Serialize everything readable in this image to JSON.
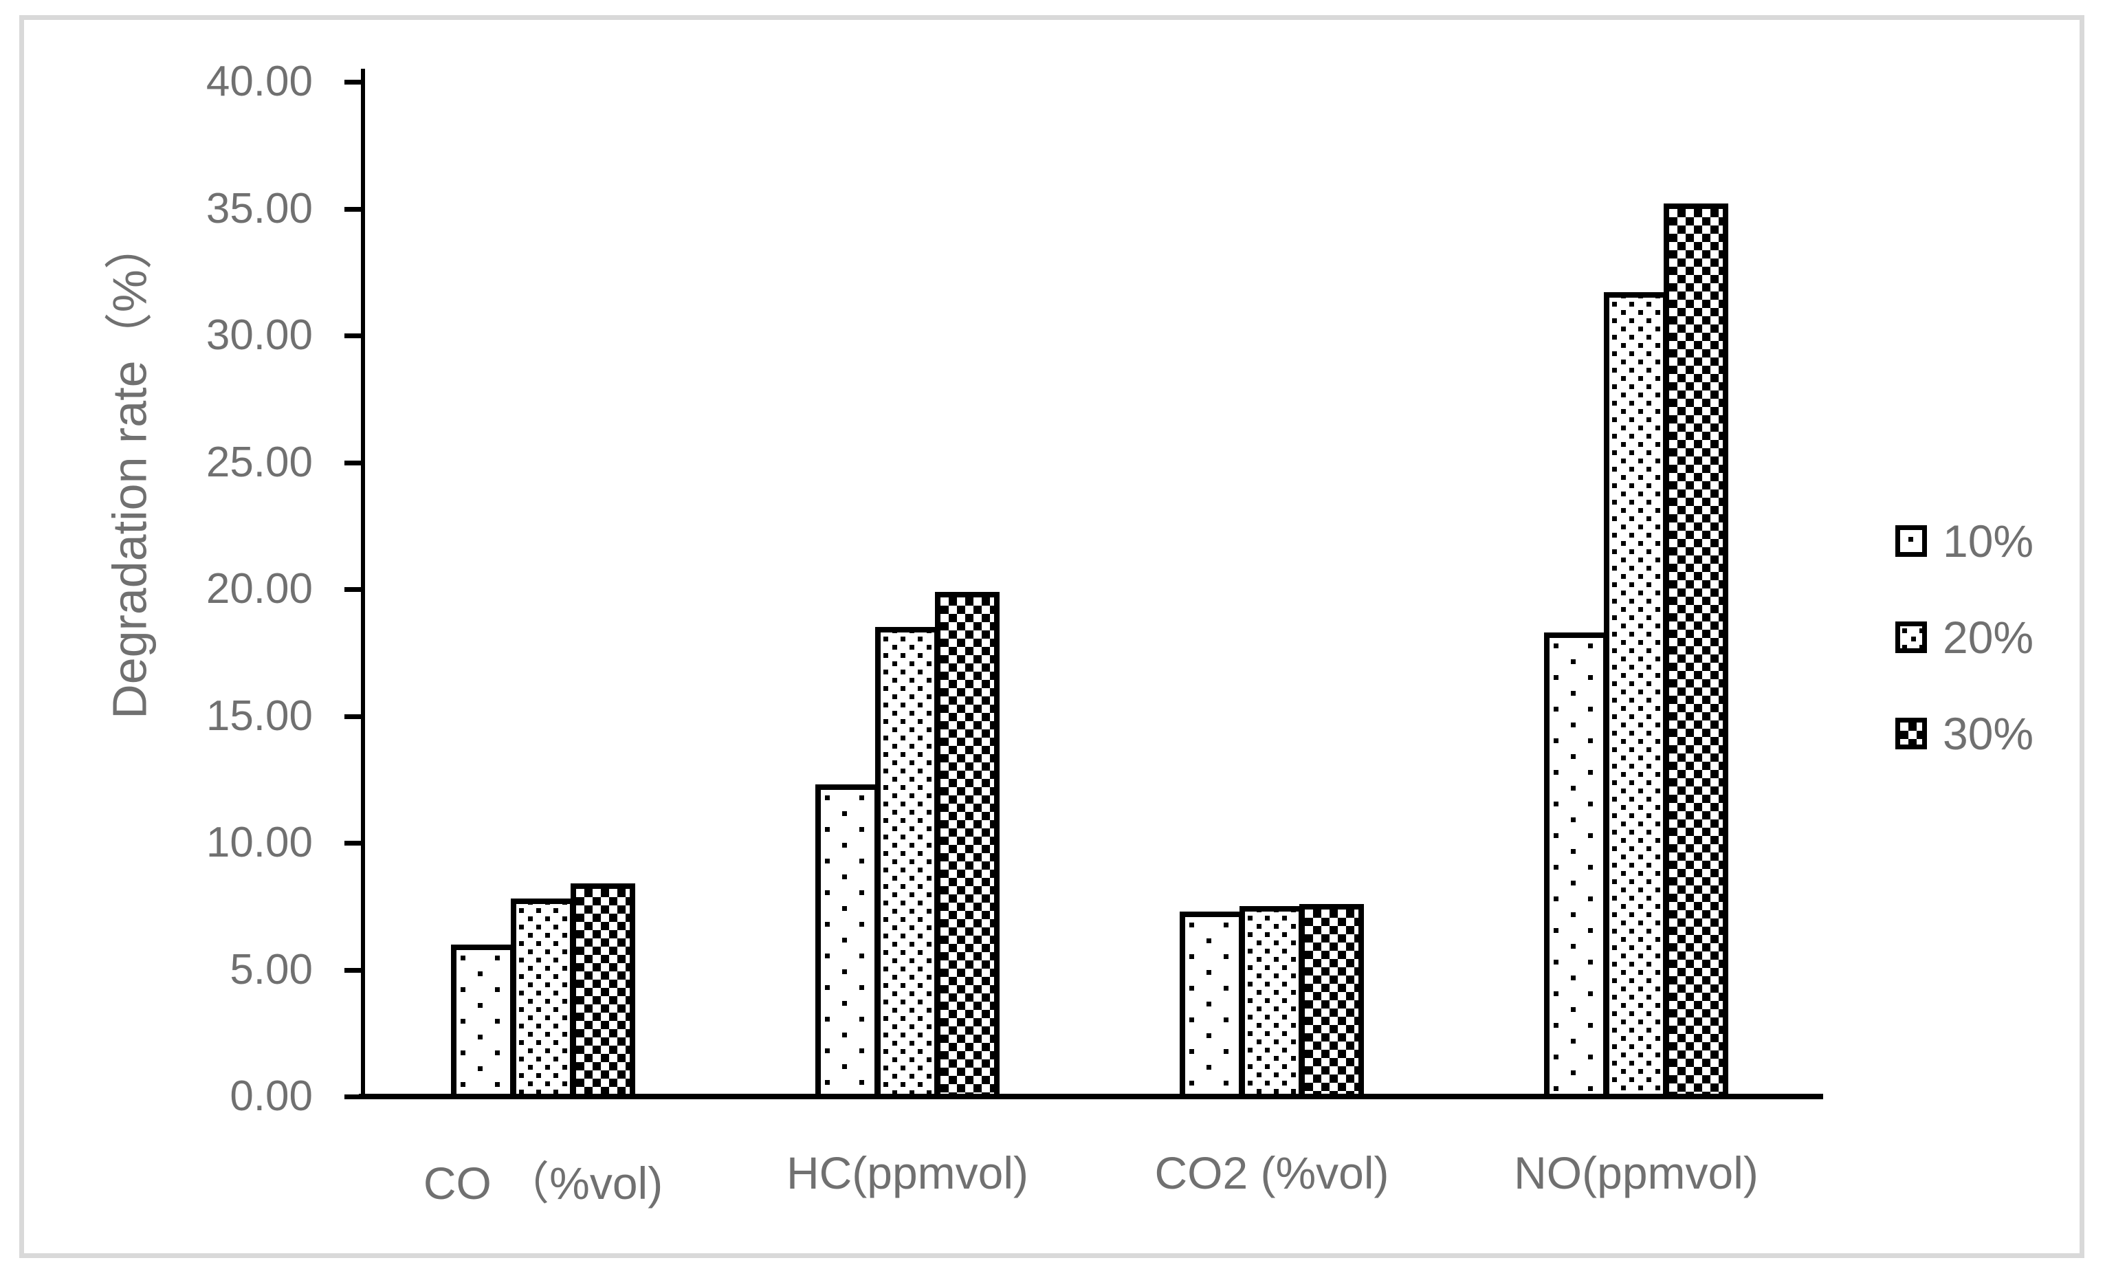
{
  "chart_data": {
    "type": "bar",
    "title": "",
    "xlabel": "",
    "ylabel": "Degradation rate（%）",
    "categories": [
      "CO （%vol)",
      "HC(ppmvol)",
      "CO2 (%vol)",
      "NO(ppmvol)"
    ],
    "series": [
      {
        "name": "10%",
        "pattern": "sparse-square-dots",
        "values": [
          6.0,
          12.3,
          7.3,
          18.3
        ]
      },
      {
        "name": "20%",
        "pattern": "dense-square-dots",
        "values": [
          7.8,
          18.5,
          7.5,
          31.7
        ]
      },
      {
        "name": "30%",
        "pattern": "checkerboard",
        "values": [
          8.4,
          19.9,
          7.6,
          35.2
        ]
      }
    ],
    "ylim": [
      0,
      40
    ],
    "ytick_step": 5,
    "ytick_labels": [
      "0.00",
      "5.00",
      "10.00",
      "15.00",
      "20.00",
      "25.00",
      "30.00",
      "35.00",
      "40.00"
    ],
    "grid": "off",
    "legend_position": "right",
    "colors": {
      "text": "#707070",
      "axis": "#000000",
      "bar_fill": "#ffffff",
      "bar_stroke": "#000000",
      "frame_border": "#d9d9d9",
      "background": "#ffffff"
    }
  }
}
